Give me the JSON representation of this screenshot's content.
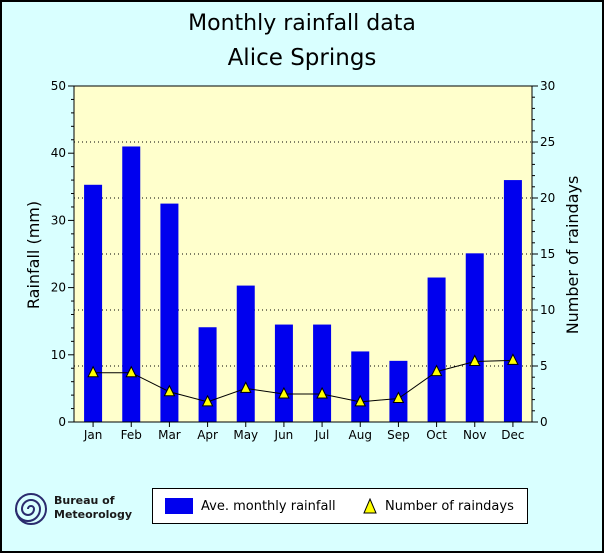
{
  "chart_data": {
    "type": "bar",
    "title": "Monthly rainfall data",
    "subtitle": "Alice Springs",
    "categories": [
      "Jan",
      "Feb",
      "Mar",
      "Apr",
      "May",
      "Jun",
      "Jul",
      "Aug",
      "Sep",
      "Oct",
      "Nov",
      "Dec"
    ],
    "series": [
      {
        "name": "Ave. monthly rainfall",
        "type": "bar",
        "axis": "left",
        "color": "#0000ee",
        "values": [
          35.3,
          41.0,
          32.5,
          14.1,
          20.3,
          14.5,
          14.5,
          10.5,
          9.1,
          21.5,
          25.1,
          36.0
        ]
      },
      {
        "name": "Number of raindays",
        "type": "line",
        "axis": "right",
        "marker": "triangle",
        "marker_color": "#ffff00",
        "values": [
          4.4,
          4.4,
          2.7,
          1.8,
          3.0,
          2.5,
          2.5,
          1.8,
          2.1,
          4.5,
          5.4,
          5.5
        ]
      }
    ],
    "ylabel": "Rainfall (mm)",
    "y2label": "Number of raindays",
    "ylim": [
      0,
      50
    ],
    "y2lim": [
      0,
      30
    ],
    "yticks": [
      "0",
      "10",
      "20",
      "30",
      "40",
      "50"
    ],
    "y2ticks": [
      "0",
      "5",
      "10",
      "15",
      "20",
      "25",
      "30"
    ],
    "grid": "horizontal dotted",
    "legend": "bottom",
    "plot_background": "#ffffcc"
  },
  "logo": {
    "line1": "Bureau of",
    "line2": "Meteorology"
  },
  "colors": {
    "page_background": "#d9ffff",
    "plot_background": "#ffffcc",
    "bar": "#0000ee",
    "marker": "#ffff00"
  }
}
